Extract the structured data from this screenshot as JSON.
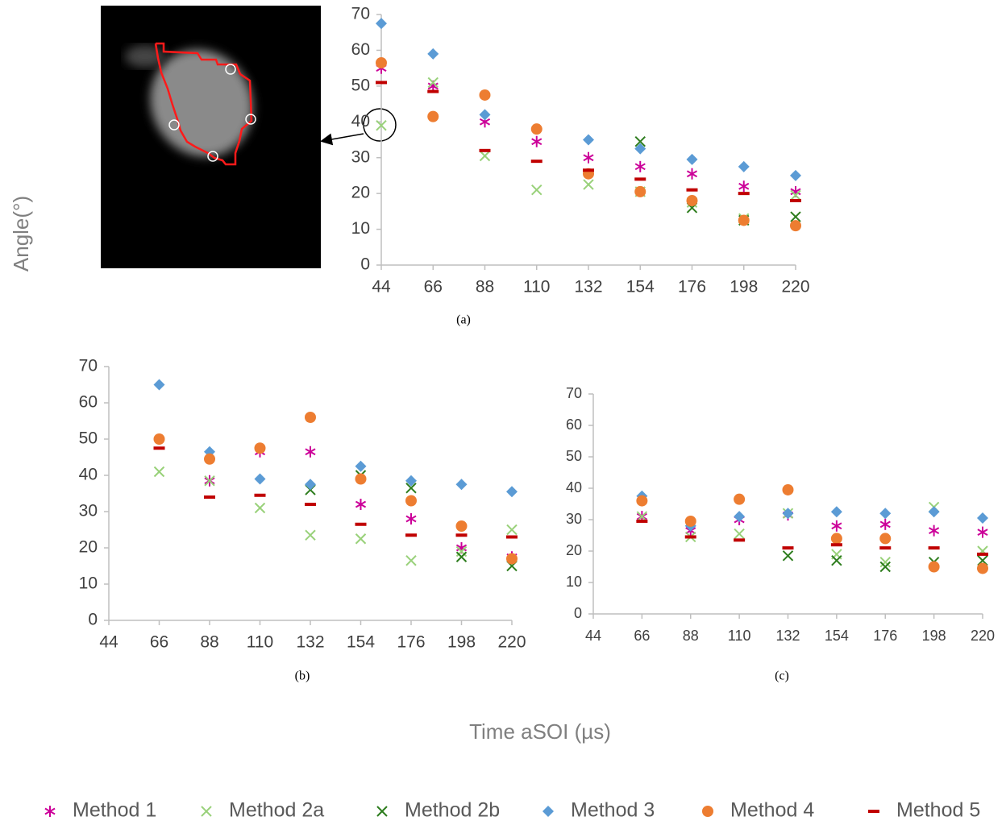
{
  "ylabel": "Angle(°)",
  "xlabel": "Time aSOI (µs)",
  "legend": "bottom",
  "chart_data": [
    {
      "type": "scatter",
      "caption": "(a)",
      "x": [
        44,
        66,
        88,
        110,
        132,
        154,
        176,
        198,
        220
      ],
      "xlim": [
        44,
        220
      ],
      "xticks": [
        44,
        66,
        88,
        110,
        132,
        154,
        176,
        198,
        220
      ],
      "ylim": [
        0,
        70
      ],
      "yticks": [
        0,
        10,
        20,
        30,
        40,
        50,
        60,
        70
      ],
      "grid": false,
      "series": [
        {
          "name": "Method 1",
          "color": "#cc0099",
          "marker": "asterisk",
          "values": [
            55,
            50,
            40,
            34.5,
            30,
            27.5,
            25.5,
            22,
            20.5
          ]
        },
        {
          "name": "Method 2a",
          "color": "#99d17a",
          "marker": "x",
          "values": [
            39,
            51,
            30.5,
            21,
            22.5,
            20.5,
            17.5,
            13,
            19.5
          ]
        },
        {
          "name": "Method 2b",
          "color": "#2e7d1e",
          "marker": "x",
          "values": [
            null,
            null,
            null,
            null,
            null,
            34.5,
            16,
            12.5,
            13.5
          ]
        },
        {
          "name": "Method 3",
          "color": "#5b9bd5",
          "marker": "diamond",
          "values": [
            67.5,
            59,
            42,
            null,
            35,
            32.5,
            29.5,
            27.5,
            25
          ]
        },
        {
          "name": "Method 4",
          "color": "#ed7d31",
          "marker": "circle",
          "values": [
            56.5,
            41.5,
            47.5,
            38,
            25.5,
            20.5,
            18,
            12.5,
            11
          ]
        },
        {
          "name": "Method 5",
          "color": "#c00000",
          "marker": "dash",
          "values": [
            51,
            48.5,
            32,
            29,
            26.5,
            24,
            21,
            20,
            18
          ]
        }
      ]
    },
    {
      "type": "scatter",
      "caption": "(b)",
      "x": [
        44,
        66,
        88,
        110,
        132,
        154,
        176,
        198,
        220
      ],
      "xlim": [
        44,
        220
      ],
      "xticks": [
        44,
        66,
        88,
        110,
        132,
        154,
        176,
        198,
        220
      ],
      "ylim": [
        0,
        70
      ],
      "yticks": [
        0,
        10,
        20,
        30,
        40,
        50,
        60,
        70
      ],
      "grid": false,
      "series": [
        {
          "name": "Method 1",
          "color": "#cc0099",
          "marker": "asterisk",
          "values": [
            null,
            null,
            38.5,
            46.5,
            46.5,
            32,
            28,
            20,
            17.5
          ]
        },
        {
          "name": "Method 2a",
          "color": "#99d17a",
          "marker": "x",
          "values": [
            null,
            41,
            38.5,
            31,
            23.5,
            22.5,
            16.5,
            19,
            25
          ]
        },
        {
          "name": "Method 2b",
          "color": "#2e7d1e",
          "marker": "x",
          "values": [
            null,
            null,
            null,
            null,
            36,
            40,
            36.5,
            17.5,
            15
          ]
        },
        {
          "name": "Method 3",
          "color": "#5b9bd5",
          "marker": "diamond",
          "values": [
            null,
            65,
            46.5,
            39,
            37.5,
            42.5,
            38.5,
            37.5,
            35.5
          ]
        },
        {
          "name": "Method 4",
          "color": "#ed7d31",
          "marker": "circle",
          "values": [
            null,
            50,
            44.5,
            47.5,
            56,
            39,
            33,
            26,
            17
          ]
        },
        {
          "name": "Method 5",
          "color": "#c00000",
          "marker": "dash",
          "values": [
            null,
            47.5,
            34,
            34.5,
            32,
            26.5,
            23.5,
            23.5,
            23
          ]
        }
      ]
    },
    {
      "type": "scatter",
      "caption": "(c)",
      "x": [
        44,
        66,
        88,
        110,
        132,
        154,
        176,
        198,
        220
      ],
      "xlim": [
        44,
        220
      ],
      "xticks": [
        44,
        66,
        88,
        110,
        132,
        154,
        176,
        198,
        220
      ],
      "ylim": [
        0,
        70
      ],
      "yticks": [
        0,
        10,
        20,
        30,
        40,
        50,
        60,
        70
      ],
      "grid": false,
      "series": [
        {
          "name": "Method 1",
          "color": "#cc0099",
          "marker": "asterisk",
          "values": [
            null,
            31,
            26.5,
            30,
            31.5,
            28,
            28.5,
            26.5,
            26
          ]
        },
        {
          "name": "Method 2a",
          "color": "#99d17a",
          "marker": "x",
          "values": [
            null,
            31,
            24.5,
            25.5,
            32,
            19,
            16.5,
            34,
            20
          ]
        },
        {
          "name": "Method 2b",
          "color": "#2e7d1e",
          "marker": "x",
          "values": [
            null,
            null,
            null,
            null,
            18.5,
            17,
            15,
            16.5,
            17
          ]
        },
        {
          "name": "Method 3",
          "color": "#5b9bd5",
          "marker": "diamond",
          "values": [
            null,
            37.5,
            28,
            31,
            32,
            32.5,
            32,
            32.5,
            30.5
          ]
        },
        {
          "name": "Method 4",
          "color": "#ed7d31",
          "marker": "circle",
          "values": [
            null,
            36,
            29.5,
            36.5,
            39.5,
            24,
            24,
            15,
            14.5
          ]
        },
        {
          "name": "Method 5",
          "color": "#c00000",
          "marker": "dash",
          "values": [
            null,
            29.5,
            24.5,
            23.5,
            21,
            22,
            21,
            21,
            19
          ]
        }
      ]
    }
  ]
}
